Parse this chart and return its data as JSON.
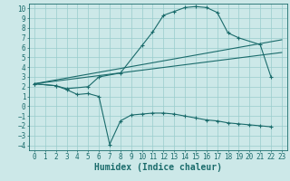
{
  "bg_color": "#cce8e8",
  "grid_color": "#99cccc",
  "line_color": "#1a6b6b",
  "xlabel": "Humidex (Indice chaleur)",
  "xlabel_fontsize": 7,
  "tick_fontsize": 5.5,
  "xlim": [
    -0.5,
    23.5
  ],
  "ylim": [
    -4.5,
    10.5
  ],
  "xticks": [
    0,
    1,
    2,
    3,
    4,
    5,
    6,
    7,
    8,
    9,
    10,
    11,
    12,
    13,
    14,
    15,
    16,
    17,
    18,
    19,
    20,
    21,
    22,
    23
  ],
  "yticks": [
    -4,
    -3,
    -2,
    -1,
    0,
    1,
    2,
    3,
    4,
    5,
    6,
    7,
    8,
    9,
    10
  ],
  "line1_x": [
    0,
    23
  ],
  "line1_y": [
    2.3,
    6.8
  ],
  "line2_x": [
    0,
    23
  ],
  "line2_y": [
    2.3,
    5.5
  ],
  "curve_lower_x": [
    0,
    2,
    3,
    4,
    5,
    6,
    7,
    8,
    9,
    10,
    11,
    12,
    13,
    14,
    15,
    16,
    17,
    18,
    19,
    20,
    21,
    22
  ],
  "curve_lower_y": [
    2.3,
    2.1,
    1.7,
    1.2,
    1.3,
    1.0,
    -3.9,
    -1.5,
    -0.9,
    -0.8,
    -0.7,
    -0.7,
    -0.8,
    -1.0,
    -1.2,
    -1.4,
    -1.5,
    -1.7,
    -1.8,
    -1.9,
    -2.0,
    -2.1
  ],
  "curve_upper_x": [
    0,
    2,
    3,
    5,
    6,
    8,
    10,
    11,
    12,
    13,
    14,
    15,
    16,
    17,
    18,
    19,
    21,
    22
  ],
  "curve_upper_y": [
    2.3,
    2.1,
    1.8,
    2.0,
    3.0,
    3.4,
    6.2,
    7.6,
    9.3,
    9.7,
    10.1,
    10.2,
    10.1,
    9.6,
    7.5,
    7.0,
    6.3,
    3.0
  ]
}
